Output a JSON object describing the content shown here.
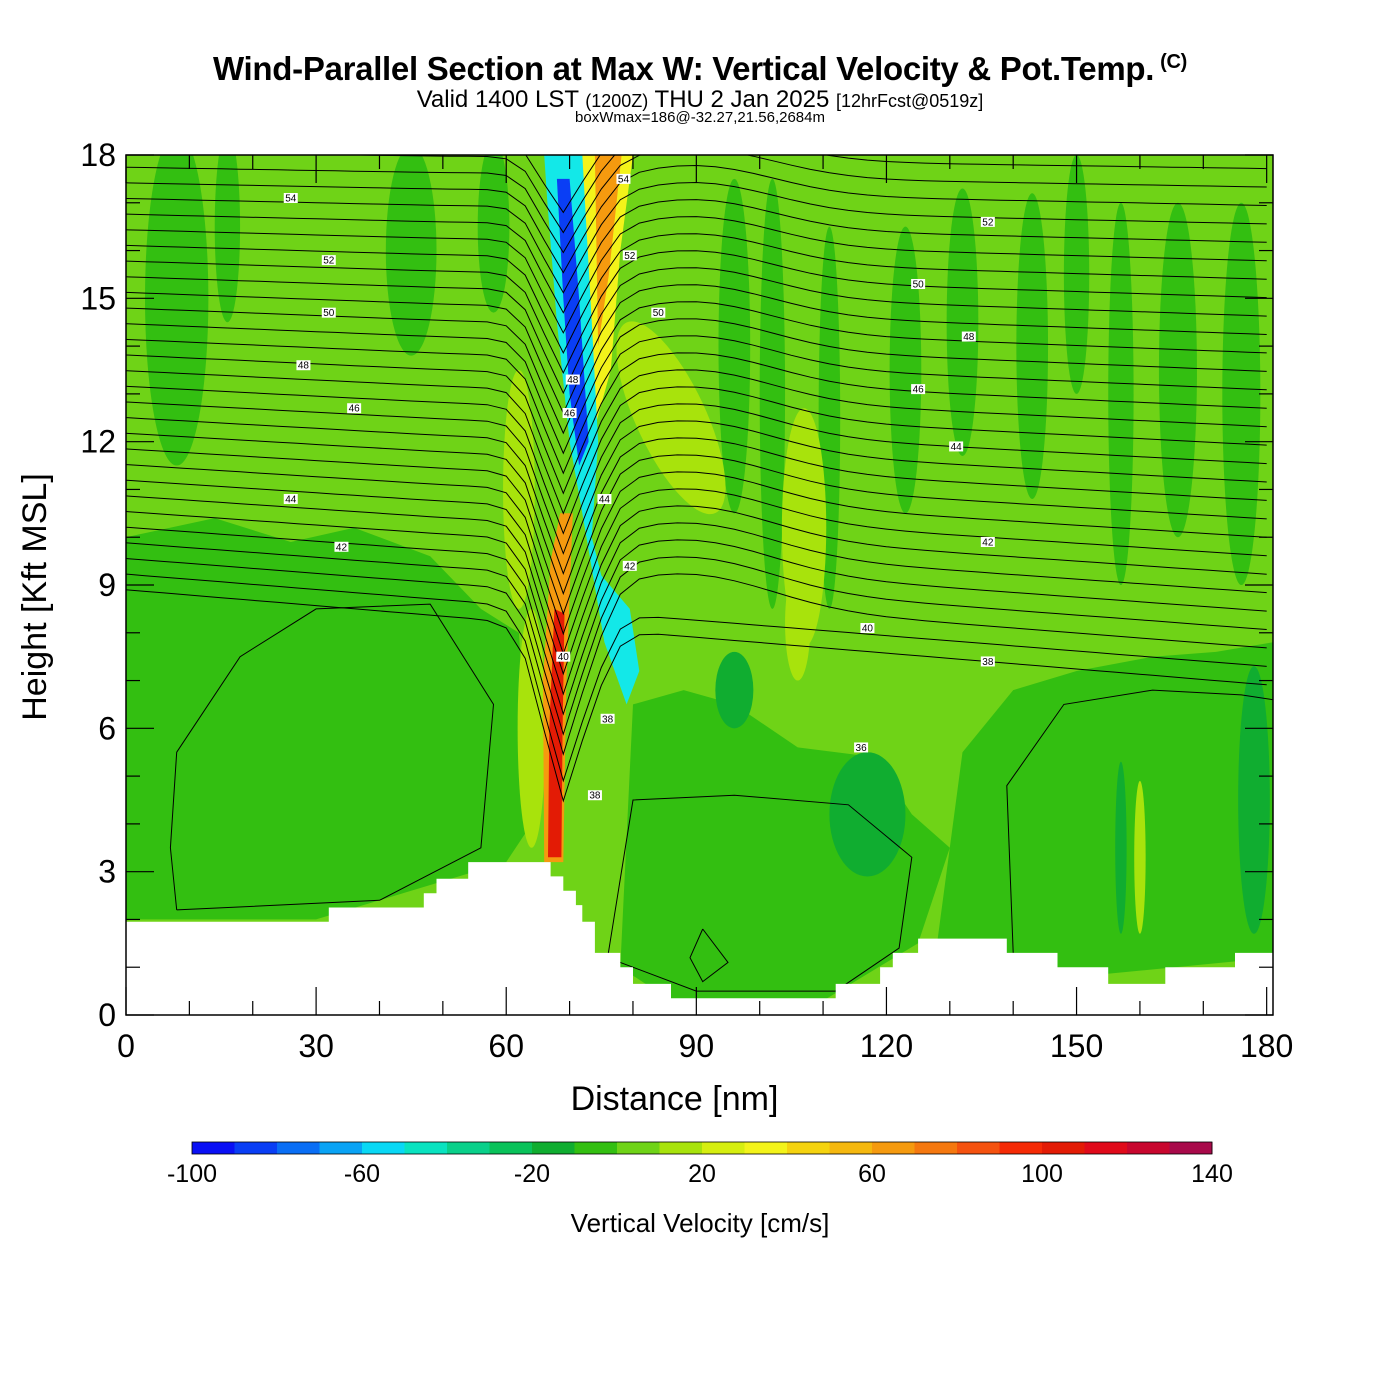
{
  "titles": {
    "main": "Wind-Parallel Section at Max W: Vertical Velocity & Pot.Temp.",
    "copyright": "(C)",
    "valid_prefix": "Valid 1400 LST",
    "valid_utc": "(1200Z)",
    "valid_date": "THU 2 Jan 2025",
    "forecast": "[12hrFcst@0519z]",
    "box_wmax": "boxWmax=186@-32.27,21.56,2684m"
  },
  "colors": {
    "fill_light_green": "#6fd317",
    "fill_mid_green": "#33bf11",
    "fill_dark_green": "#10ad30",
    "fill_yellow_green": "#a8e30c",
    "fill_yellow": "#f3f31a",
    "fill_orange": "#f59a0f",
    "fill_red": "#e31b05",
    "fill_cyan": "#13e8e8",
    "fill_blue": "#0a3ef5",
    "terrain": "#ffffff",
    "contour_line": "#000000"
  },
  "chart_data": {
    "type": "heatmap",
    "description_type": "vertical cross-section contour plot",
    "xlabel": "Distance [nm]",
    "ylabel": "Height [Kft MSL]",
    "xlim": [
      0,
      181
    ],
    "ylim": [
      0,
      18
    ],
    "xticks": [
      0,
      30,
      60,
      90,
      120,
      150,
      180
    ],
    "yticks": [
      0,
      3,
      6,
      9,
      12,
      15,
      18
    ],
    "colorbar": {
      "title": "Vertical Velocity [cm/s]",
      "levels": [
        -100,
        -90,
        -80,
        -70,
        -60,
        -50,
        -40,
        -30,
        -20,
        -10,
        0,
        10,
        20,
        30,
        40,
        50,
        60,
        70,
        80,
        90,
        100,
        110,
        120,
        130,
        140
      ],
      "tick_labels": [
        "-100",
        "-60",
        "-20",
        "20",
        "60",
        "100",
        "140"
      ],
      "tick_values": [
        -100,
        -60,
        -20,
        20,
        60,
        100,
        140
      ],
      "colors": [
        "#0a10f5",
        "#0a3ef5",
        "#0a6ef5",
        "#0aa3f5",
        "#0ad8f5",
        "#0ae3c0",
        "#0ad08a",
        "#0ac25a",
        "#10ad30",
        "#33bf11",
        "#6fd317",
        "#a8e30c",
        "#d6ee10",
        "#f3f31a",
        "#f5d30f",
        "#f5b80f",
        "#f59a0f",
        "#f5780f",
        "#f5520f",
        "#f52a05",
        "#e31b05",
        "#e00a1a",
        "#c8062e",
        "#a80a4a"
      ]
    },
    "terrain_kft": {
      "x": [
        0,
        32,
        32,
        47,
        47,
        49,
        49,
        54,
        54,
        67,
        67,
        69,
        69,
        71,
        71,
        72,
        72,
        74,
        74,
        78,
        78,
        80,
        80,
        86,
        86,
        112,
        112,
        119,
        119,
        121,
        121,
        125,
        125,
        139,
        139,
        147,
        147,
        155,
        155,
        164,
        164,
        175,
        175,
        181
      ],
      "y": [
        1.95,
        1.95,
        2.25,
        2.25,
        2.55,
        2.55,
        2.85,
        2.85,
        3.2,
        3.2,
        2.9,
        2.9,
        2.6,
        2.6,
        2.3,
        2.3,
        1.95,
        1.95,
        1.3,
        1.3,
        1.0,
        1.0,
        0.65,
        0.65,
        0.35,
        0.35,
        0.65,
        0.65,
        1.0,
        1.0,
        1.3,
        1.3,
        1.6,
        1.6,
        1.3,
        1.3,
        1.0,
        1.0,
        0.65,
        0.65,
        1.0,
        1.0,
        1.3,
        1.3
      ]
    },
    "theta_contour_labels": [
      {
        "text": "54",
        "x": 26,
        "y": 17.1
      },
      {
        "text": "52",
        "x": 32,
        "y": 15.8
      },
      {
        "text": "50",
        "x": 32,
        "y": 14.7
      },
      {
        "text": "48",
        "x": 28,
        "y": 13.6
      },
      {
        "text": "46",
        "x": 36,
        "y": 12.7
      },
      {
        "text": "44",
        "x": 26,
        "y": 10.8
      },
      {
        "text": "42",
        "x": 34,
        "y": 9.8
      },
      {
        "text": "54",
        "x": 78.5,
        "y": 17.5
      },
      {
        "text": "52",
        "x": 79.5,
        "y": 15.9
      },
      {
        "text": "50",
        "x": 84,
        "y": 14.7
      },
      {
        "text": "48",
        "x": 70.5,
        "y": 13.3
      },
      {
        "text": "46",
        "x": 70,
        "y": 12.6
      },
      {
        "text": "44",
        "x": 75.5,
        "y": 10.8
      },
      {
        "text": "42",
        "x": 79.5,
        "y": 9.4
      },
      {
        "text": "40",
        "x": 69,
        "y": 7.5
      },
      {
        "text": "38",
        "x": 76,
        "y": 6.2
      },
      {
        "text": "38",
        "x": 74,
        "y": 4.6
      },
      {
        "text": "52",
        "x": 136,
        "y": 16.6
      },
      {
        "text": "50",
        "x": 125,
        "y": 15.3
      },
      {
        "text": "48",
        "x": 133,
        "y": 14.2
      },
      {
        "text": "46",
        "x": 125,
        "y": 13.1
      },
      {
        "text": "44",
        "x": 131,
        "y": 11.9
      },
      {
        "text": "42",
        "x": 136,
        "y": 9.9
      },
      {
        "text": "40",
        "x": 117,
        "y": 8.1
      },
      {
        "text": "38",
        "x": 136,
        "y": 7.4
      },
      {
        "text": "36",
        "x": 116,
        "y": 5.6
      }
    ]
  }
}
